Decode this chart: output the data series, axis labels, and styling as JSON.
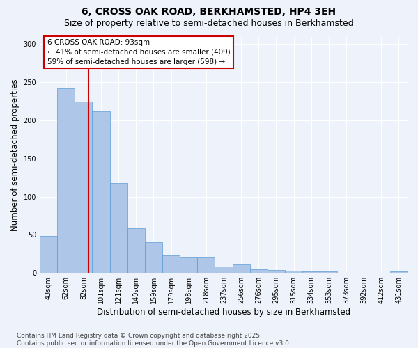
{
  "title": "6, CROSS OAK ROAD, BERKHAMSTED, HP4 3EH",
  "subtitle": "Size of property relative to semi-detached houses in Berkhamsted",
  "xlabel": "Distribution of semi-detached houses by size in Berkhamsted",
  "ylabel": "Number of semi-detached properties",
  "categories": [
    "43sqm",
    "62sqm",
    "82sqm",
    "101sqm",
    "121sqm",
    "140sqm",
    "159sqm",
    "179sqm",
    "198sqm",
    "218sqm",
    "237sqm",
    "256sqm",
    "276sqm",
    "295sqm",
    "315sqm",
    "334sqm",
    "353sqm",
    "373sqm",
    "392sqm",
    "412sqm",
    "431sqm"
  ],
  "values": [
    49,
    242,
    225,
    212,
    118,
    59,
    40,
    23,
    21,
    21,
    8,
    11,
    5,
    4,
    3,
    2,
    2,
    0,
    0,
    0,
    2
  ],
  "bar_color": "#aec6e8",
  "bar_edge_color": "#5b9bd5",
  "marker_label": "6 CROSS OAK ROAD: 93sqm",
  "pct_smaller": 41,
  "count_smaller": 409,
  "pct_larger": 59,
  "count_larger": 598,
  "vline_color": "#cc0000",
  "annotation_box_color": "#cc0000",
  "ylim": [
    0,
    310
  ],
  "yticks": [
    0,
    50,
    100,
    150,
    200,
    250,
    300
  ],
  "footer": "Contains HM Land Registry data © Crown copyright and database right 2025.\nContains public sector information licensed under the Open Government Licence v3.0.",
  "background_color": "#eef2fa",
  "grid_color": "#ffffff",
  "title_fontsize": 10,
  "subtitle_fontsize": 9,
  "axis_label_fontsize": 8.5,
  "tick_fontsize": 7,
  "footer_fontsize": 6.5,
  "annotation_fontsize": 7.5,
  "vline_x": 2.3
}
